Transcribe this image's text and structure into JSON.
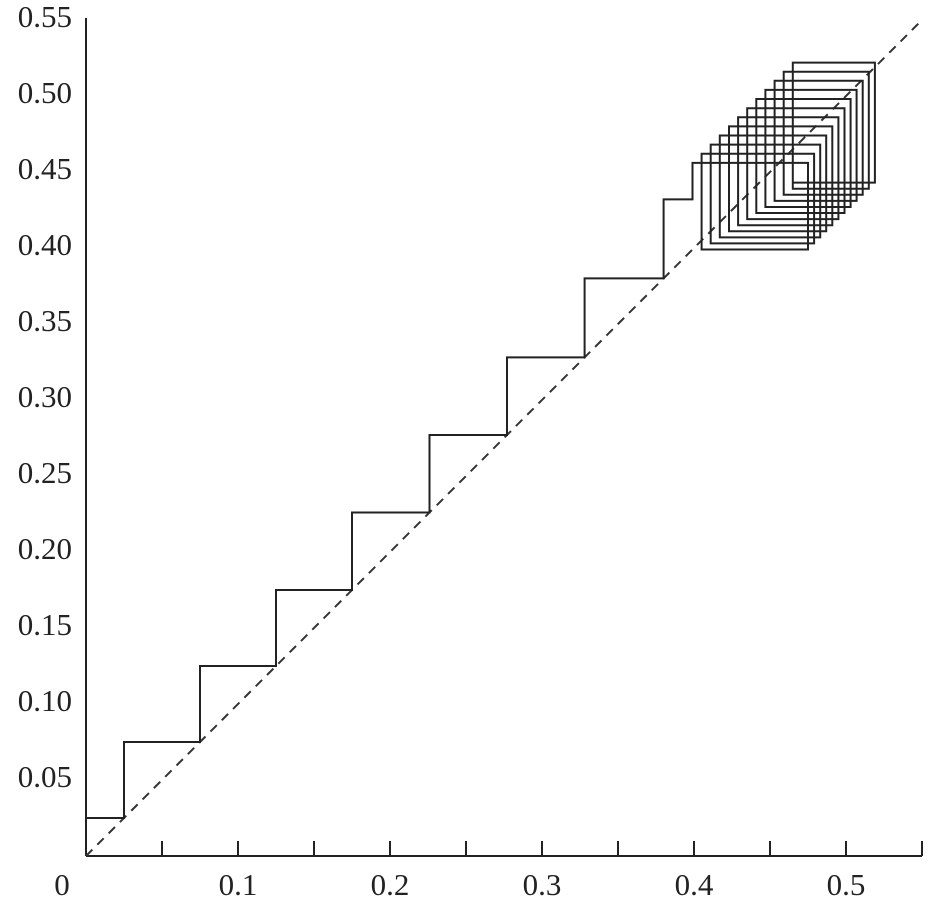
{
  "chart_data": {
    "type": "line",
    "xlim": [
      0,
      0.55
    ],
    "ylim": [
      0,
      0.55
    ],
    "xticks": [
      0,
      0.1,
      0.2,
      0.3,
      0.4,
      0.5
    ],
    "xminorticks": [
      0.05,
      0.15,
      0.25,
      0.35,
      0.45,
      0.55
    ],
    "yticks": [
      0.05,
      {
        "value": 0.1,
        "label": "0.10"
      },
      0.15,
      {
        "value": 0.2,
        "label": "0.20"
      },
      0.25,
      {
        "value": 0.3,
        "label": "0.30"
      },
      0.35,
      {
        "value": 0.4,
        "label": "0.40"
      },
      0.45,
      {
        "value": 0.5,
        "label": "0.50"
      },
      0.55
    ],
    "series": [
      {
        "color": "#333333",
        "style": "dashed",
        "x": [
          0,
          0.55
        ],
        "values": [
          0,
          0.55
        ]
      },
      {
        "color": "#222222",
        "style": "solid",
        "x": [
          0,
          0.025,
          0.025,
          0.075,
          0.075,
          0.125,
          0.125,
          0.175,
          0.175,
          0.226,
          0.226,
          0.277,
          0.277,
          0.328,
          0.328,
          0.38,
          0.38,
          0.399,
          0.399,
          0.475,
          0.475,
          0.405,
          0.405,
          0.479,
          0.479,
          0.411,
          0.411,
          0.483,
          0.483,
          0.417,
          0.417,
          0.487,
          0.487,
          0.423,
          0.423,
          0.491,
          0.491,
          0.429,
          0.429,
          0.495,
          0.495,
          0.435,
          0.435,
          0.499,
          0.499,
          0.441,
          0.441,
          0.503,
          0.503,
          0.447,
          0.447,
          0.507,
          0.507,
          0.453,
          0.453,
          0.511,
          0.511,
          0.459,
          0.459,
          0.515,
          0.515,
          0.465,
          0.465,
          0.519,
          0.519,
          0.465
        ],
        "values": [
          0.025,
          0.025,
          0.075,
          0.075,
          0.125,
          0.125,
          0.175,
          0.175,
          0.226,
          0.226,
          0.277,
          0.277,
          0.328,
          0.328,
          0.38,
          0.38,
          0.432,
          0.432,
          0.456,
          0.456,
          0.399,
          0.399,
          0.462,
          0.462,
          0.403,
          0.403,
          0.468,
          0.468,
          0.407,
          0.407,
          0.474,
          0.474,
          0.411,
          0.411,
          0.48,
          0.48,
          0.415,
          0.415,
          0.486,
          0.486,
          0.419,
          0.419,
          0.492,
          0.492,
          0.423,
          0.423,
          0.498,
          0.498,
          0.427,
          0.427,
          0.504,
          0.504,
          0.431,
          0.431,
          0.51,
          0.51,
          0.435,
          0.435,
          0.516,
          0.516,
          0.439,
          0.439,
          0.522,
          0.522,
          0.443,
          0.443
        ]
      }
    ]
  }
}
